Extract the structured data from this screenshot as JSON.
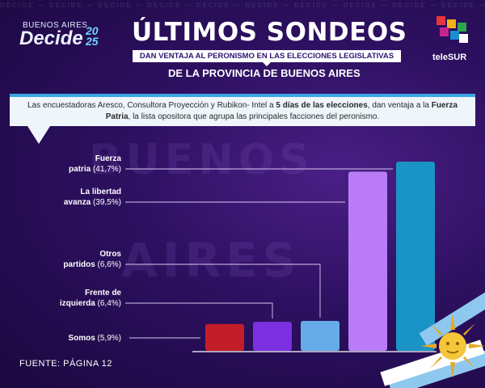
{
  "brand": {
    "logo_small": "BUENOS AIRES",
    "logo_big": "Decide",
    "logo_year_a": "20",
    "logo_year_b": "25",
    "watermark": "DECIDE — DECIDE — DECIDE — DECIDE — DECIDE — DECIDE — DECIDE — DECIDE — DECIDE — DECIDE — DECIDE",
    "channel": "teleSUR"
  },
  "header": {
    "title": "ÚLTIMOS SONDEOS",
    "subtitle1": "DAN VENTAJA AL PERONISMO EN LAS ELECCIONES LEGISLATIVAS",
    "subtitle2": "DE LA PROVINCIA DE BUENOS AIRES"
  },
  "description": {
    "part1": "Las encuestadoras Aresco, Consultora Proyección y Rubikon- Intel a ",
    "bold1": "5 días de las elecciones",
    "part2": ", dan ventaja a la ",
    "bold2": "Fuerza Patria",
    "part3": ", la lista opositora que agrupa las principales facciones del peronismo."
  },
  "background_words": [
    "BUENOS",
    "AIRES"
  ],
  "source": "FUENTE: PÁGINA 12",
  "colors": {
    "background": "#2d1060",
    "accent_blue": "#39a7e4",
    "somos": "#c41d2a",
    "frente_izquierda": "#7b2fe0",
    "otros": "#65ace8",
    "libertad_avanza": "#b97cf6",
    "fuerza_patria": "#1a93c6"
  },
  "chart_data": {
    "type": "bar",
    "categories": [
      "Somos",
      "Frente de izquierda",
      "Otros partidos",
      "La libertad avanza",
      "Fuerza patria"
    ],
    "values": [
      5.9,
      6.4,
      6.6,
      39.5,
      41.7
    ],
    "labels": [
      {
        "name": "Somos",
        "pct": "(5,9%)"
      },
      {
        "name": "Frente de izquierda",
        "pct": "(6,4%)"
      },
      {
        "name": "Otros partidos",
        "pct": "(6,6%)"
      },
      {
        "name": "La libertad avanza",
        "pct": "(39,5%)"
      },
      {
        "name": "Fuerza patria",
        "pct": "(41,7%)"
      }
    ],
    "colors": [
      "#c41d2a",
      "#7b2fe0",
      "#65ace8",
      "#b97cf6",
      "#1a93c6"
    ],
    "title": "ÚLTIMOS SONDEOS",
    "xlabel": "",
    "ylabel": "",
    "ylim": [
      0,
      41.7
    ],
    "grid": false,
    "legend": "none (labels on left with leader lines)"
  }
}
